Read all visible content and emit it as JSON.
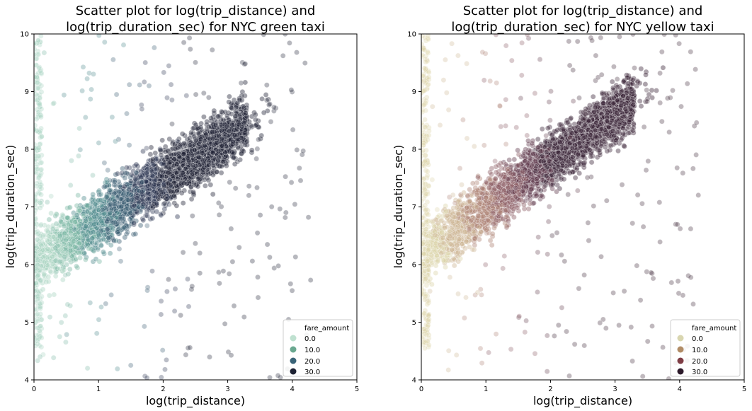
{
  "chart_data": [
    {
      "type": "scatter",
      "title_line1": "Scatter plot for log(trip_distance) and",
      "title_line2": "log(trip_duration_sec) for NYC green taxi",
      "xlabel": "log(trip_distance)",
      "ylabel": "log(trip_duration_sec)",
      "xlim": [
        0,
        5
      ],
      "ylim": [
        4,
        10
      ],
      "xticks": [
        "0",
        "1",
        "2",
        "3",
        "4",
        "5"
      ],
      "yticks": [
        "4",
        "5",
        "6",
        "7",
        "8",
        "9",
        "10"
      ],
      "hue": "fare_amount",
      "legend_title": "fare_amount",
      "legend_position": "lower-right",
      "legend": [
        {
          "label": "0.0",
          "color": "#bfe1d0"
        },
        {
          "label": "10.0",
          "color": "#6aa890"
        },
        {
          "label": "20.0",
          "color": "#3a6478"
        },
        {
          "label": "30.0",
          "color": "#1d2233"
        }
      ],
      "ramp": [
        "#a9d4c2",
        "#7db7a5",
        "#4f8a8c",
        "#385a70",
        "#2a3550",
        "#1e2235"
      ],
      "trend": {
        "intercept": 6.05,
        "slope": 0.72,
        "spread": 0.62
      }
    },
    {
      "type": "scatter",
      "title_line1": "Scatter plot for log(trip_distance) and",
      "title_line2": "log(trip_duration_sec) for NYC yellow taxi",
      "xlabel": "log(trip_distance)",
      "ylabel": "log(trip_duration_sec)",
      "xlim": [
        0,
        5
      ],
      "ylim": [
        4,
        10
      ],
      "xticks": [
        "0",
        "1",
        "2",
        "3",
        "4",
        "5"
      ],
      "yticks": [
        "4",
        "5",
        "6",
        "7",
        "8",
        "9",
        "10"
      ],
      "hue": "fare_amount",
      "legend_title": "fare_amount",
      "legend_position": "lower-right",
      "legend": [
        {
          "label": "0.0",
          "color": "#d9d6b0"
        },
        {
          "label": "10.0",
          "color": "#b18c66"
        },
        {
          "label": "20.0",
          "color": "#7f3d45"
        },
        {
          "label": "30.0",
          "color": "#2c1a2a"
        }
      ],
      "ramp": [
        "#dcd4aa",
        "#cdb694",
        "#ad8475",
        "#8a5a62",
        "#5f3a4c",
        "#3a2436"
      ],
      "trend": {
        "intercept": 6.2,
        "slope": 0.8,
        "spread": 0.6
      }
    }
  ]
}
